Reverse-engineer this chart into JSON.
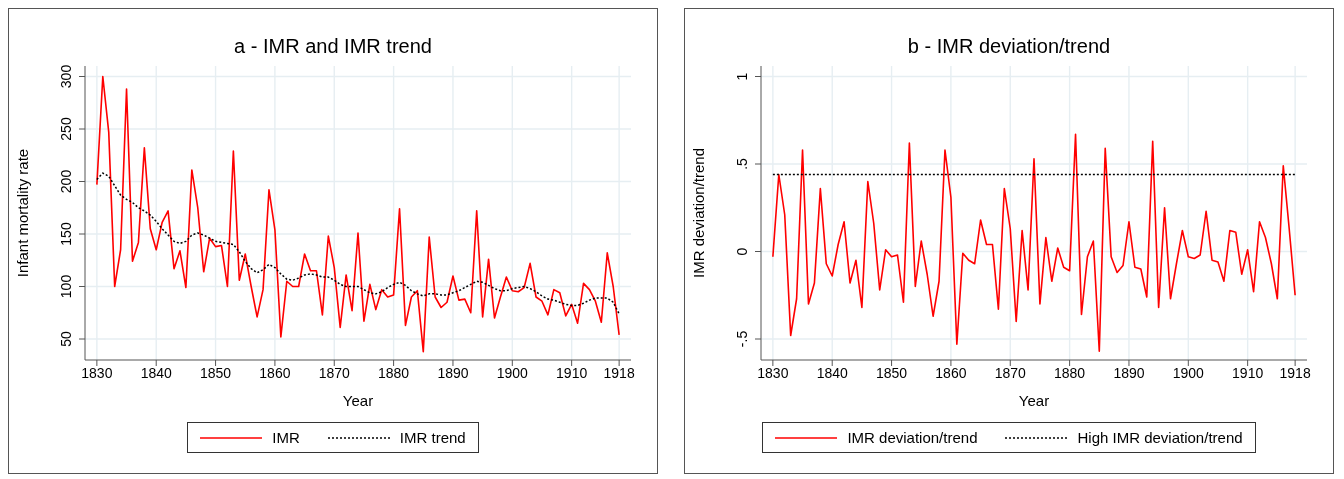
{
  "chart_data": [
    {
      "type": "line",
      "title": "a - IMR and IMR trend",
      "xlabel": "Year",
      "ylabel": "Infant mortality rate",
      "x": [
        1830,
        1831,
        1832,
        1833,
        1834,
        1835,
        1836,
        1837,
        1838,
        1839,
        1840,
        1841,
        1842,
        1843,
        1844,
        1845,
        1846,
        1847,
        1848,
        1849,
        1850,
        1851,
        1852,
        1853,
        1854,
        1855,
        1856,
        1857,
        1858,
        1859,
        1860,
        1861,
        1862,
        1863,
        1864,
        1865,
        1866,
        1867,
        1868,
        1869,
        1870,
        1871,
        1872,
        1873,
        1874,
        1875,
        1876,
        1877,
        1878,
        1879,
        1880,
        1881,
        1882,
        1883,
        1884,
        1885,
        1886,
        1887,
        1888,
        1889,
        1890,
        1891,
        1892,
        1893,
        1894,
        1895,
        1896,
        1897,
        1898,
        1899,
        1900,
        1901,
        1902,
        1903,
        1904,
        1905,
        1906,
        1907,
        1908,
        1909,
        1910,
        1911,
        1912,
        1913,
        1914,
        1915,
        1916,
        1917,
        1918
      ],
      "series": [
        {
          "name": "IMR",
          "color": "#ff0000",
          "line_style": "solid",
          "values": [
            197,
            300,
            247,
            100,
            135,
            288,
            124,
            142,
            232,
            155,
            135,
            161,
            172,
            117,
            134,
            99,
            211,
            175,
            114,
            146,
            138,
            139,
            100,
            229,
            106,
            131,
            100,
            71,
            97,
            192,
            154,
            52,
            105,
            100,
            100,
            131,
            115,
            115,
            73,
            148,
            118,
            61,
            111,
            77,
            151,
            67,
            102,
            78,
            97,
            90,
            92,
            174,
            63,
            90,
            96,
            38,
            147,
            90,
            80,
            85,
            110,
            87,
            88,
            75,
            172,
            71,
            126,
            70,
            90,
            109,
            96,
            95,
            99,
            122,
            90,
            86,
            73,
            97,
            94,
            72,
            83,
            65,
            103,
            97,
            86,
            66,
            132,
            100,
            54
          ]
        },
        {
          "name": "IMR trend",
          "color": "#000000",
          "line_style": "dotted",
          "values": [
            202,
            208,
            205,
            196,
            187,
            183,
            180,
            175,
            172,
            168,
            162,
            155,
            149,
            143,
            141,
            143,
            149,
            151,
            149,
            146,
            143,
            142,
            141,
            140,
            133,
            124,
            117,
            113,
            116,
            121,
            118,
            112,
            107,
            106,
            108,
            111,
            112,
            111,
            109,
            109,
            106,
            102,
            100,
            100,
            100,
            97,
            94,
            93,
            95,
            99,
            102,
            104,
            101,
            96,
            93,
            91,
            93,
            93,
            92,
            92,
            94,
            96,
            99,
            102,
            105,
            104,
            101,
            98,
            96,
            96,
            98,
            99,
            100,
            98,
            95,
            91,
            88,
            87,
            85,
            83,
            82,
            82,
            84,
            87,
            89,
            89,
            89,
            85,
            74
          ]
        }
      ],
      "xlim": [
        1828,
        1920
      ],
      "xticks": [
        1830,
        1840,
        1850,
        1860,
        1870,
        1880,
        1890,
        1900,
        1910,
        1918
      ],
      "ylim": [
        30,
        310
      ],
      "yticks": [
        50,
        100,
        150,
        200,
        250,
        300
      ],
      "grid": true,
      "legend": "bottom",
      "marker": "none"
    },
    {
      "type": "line",
      "title": "b - IMR deviation/trend",
      "xlabel": "Year",
      "ylabel": "IMR deviation/trend",
      "x": [
        1830,
        1831,
        1832,
        1833,
        1834,
        1835,
        1836,
        1837,
        1838,
        1839,
        1840,
        1841,
        1842,
        1843,
        1844,
        1845,
        1846,
        1847,
        1848,
        1849,
        1850,
        1851,
        1852,
        1853,
        1854,
        1855,
        1856,
        1857,
        1858,
        1859,
        1860,
        1861,
        1862,
        1863,
        1864,
        1865,
        1866,
        1867,
        1868,
        1869,
        1870,
        1871,
        1872,
        1873,
        1874,
        1875,
        1876,
        1877,
        1878,
        1879,
        1880,
        1881,
        1882,
        1883,
        1884,
        1885,
        1886,
        1887,
        1888,
        1889,
        1890,
        1891,
        1892,
        1893,
        1894,
        1895,
        1896,
        1897,
        1898,
        1899,
        1900,
        1901,
        1902,
        1903,
        1904,
        1905,
        1906,
        1907,
        1908,
        1909,
        1910,
        1911,
        1912,
        1913,
        1914,
        1915,
        1916,
        1917,
        1918
      ],
      "series": [
        {
          "name": "IMR deviation/trend",
          "color": "#ff0000",
          "line_style": "solid",
          "values": [
            -0.03,
            0.44,
            0.21,
            -0.48,
            -0.27,
            0.58,
            -0.3,
            -0.18,
            0.36,
            -0.07,
            -0.14,
            0.04,
            0.17,
            -0.18,
            -0.05,
            -0.32,
            0.4,
            0.16,
            -0.22,
            0.01,
            -0.03,
            -0.02,
            -0.29,
            0.62,
            -0.2,
            0.06,
            -0.13,
            -0.37,
            -0.17,
            0.58,
            0.31,
            -0.53,
            -0.01,
            -0.05,
            -0.07,
            0.18,
            0.04,
            0.04,
            -0.33,
            0.36,
            0.13,
            -0.4,
            0.12,
            -0.22,
            0.53,
            -0.3,
            0.08,
            -0.17,
            0.02,
            -0.09,
            -0.11,
            0.67,
            -0.36,
            -0.03,
            0.06,
            -0.57,
            0.59,
            -0.03,
            -0.12,
            -0.08,
            0.17,
            -0.09,
            -0.1,
            -0.26,
            0.63,
            -0.32,
            0.25,
            -0.27,
            -0.07,
            0.12,
            -0.03,
            -0.04,
            -0.02,
            0.23,
            -0.05,
            -0.06,
            -0.17,
            0.12,
            0.11,
            -0.13,
            0.01,
            -0.23,
            0.17,
            0.08,
            -0.07,
            -0.27,
            0.49,
            0.13,
            -0.25
          ]
        },
        {
          "name": "High IMR deviation/trend",
          "color": "#000000",
          "line_style": "dotted",
          "x": [
            1830,
            1918
          ],
          "values": [
            0.44,
            0.44
          ]
        }
      ],
      "xlim": [
        1828,
        1920
      ],
      "xticks": [
        1830,
        1840,
        1850,
        1860,
        1870,
        1880,
        1890,
        1900,
        1910,
        1918
      ],
      "ylim": [
        -0.62,
        1.06
      ],
      "yticks": [
        {
          "value": -0.5,
          "label": "-.5"
        },
        {
          "value": 0,
          "label": "0"
        },
        {
          "value": 0.5,
          "label": ".5"
        },
        {
          "value": 1,
          "label": "1"
        }
      ],
      "grid": true,
      "legend": "bottom",
      "marker": "none"
    }
  ]
}
